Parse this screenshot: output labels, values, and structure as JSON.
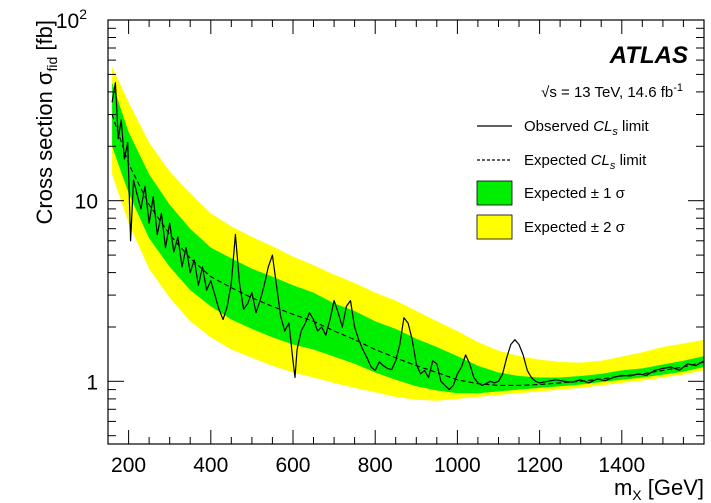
{
  "chart_data": {
    "type": "line",
    "experiment": "ATLAS",
    "energy_label": "√s = 13 TeV, 14.6 fb",
    "energy_label_sup": "-1",
    "xlabel": "m",
    "xlabel_sub": "X",
    "xlabel_unit": " [GeV]",
    "ylabel": "Cross section σ",
    "ylabel_sub": "fid",
    "ylabel_unit": " [fb]",
    "y_scale": "log",
    "xlim": [
      150,
      1600
    ],
    "ylim": [
      0.45,
      100
    ],
    "x_ticks": [
      200,
      400,
      600,
      800,
      1000,
      1200,
      1400
    ],
    "x_tick_labels": [
      "200",
      "400",
      "600",
      "800",
      "1000",
      "1200",
      "1400"
    ],
    "y_tick_labels": [
      {
        "value": 1,
        "label": "1"
      },
      {
        "value": 10,
        "label": "10"
      },
      {
        "value": 100,
        "label": "10",
        "sup": "2"
      }
    ],
    "legend": [
      {
        "key": "observed",
        "label": "Observed ",
        "label_italic": "CL",
        "label_sub": "s",
        "label_tail": " limit",
        "style": "solid-line"
      },
      {
        "key": "expected",
        "label": "Expected ",
        "label_italic": "CL",
        "label_sub": "s",
        "label_tail": " limit",
        "style": "dashed-line"
      },
      {
        "key": "band1",
        "label": "Expected ± 1 σ",
        "style": "fill",
        "color": "#00ee00"
      },
      {
        "key": "band2",
        "label": "Expected ± 2 σ",
        "style": "fill",
        "color": "#ffff00"
      }
    ],
    "legend_position": "top-right",
    "colors": {
      "band1": "#00ee00",
      "band2": "#ffff00",
      "lines": "#000000"
    },
    "series": [
      {
        "key": "expected",
        "x": [
          160,
          200,
          250,
          300,
          350,
          400,
          450,
          500,
          550,
          600,
          650,
          700,
          750,
          800,
          850,
          900,
          950,
          1000,
          1050,
          1100,
          1150,
          1200,
          1250,
          1300,
          1350,
          1400,
          1450,
          1500,
          1550,
          1600
        ],
        "y": [
          30,
          16,
          9.5,
          6.5,
          4.8,
          3.8,
          3.3,
          2.9,
          2.6,
          2.35,
          2.15,
          1.9,
          1.7,
          1.5,
          1.35,
          1.22,
          1.12,
          1.02,
          0.97,
          0.95,
          0.95,
          0.96,
          0.98,
          1.0,
          1.03,
          1.07,
          1.1,
          1.15,
          1.2,
          1.28
        ]
      },
      {
        "key": "band1",
        "x": [
          160,
          200,
          250,
          300,
          350,
          400,
          450,
          500,
          550,
          600,
          650,
          700,
          750,
          800,
          850,
          900,
          950,
          1000,
          1050,
          1100,
          1150,
          1200,
          1250,
          1300,
          1350,
          1400,
          1450,
          1500,
          1550,
          1600
        ],
        "lower": [
          20,
          11,
          6.2,
          4.3,
          3.2,
          2.6,
          2.2,
          1.95,
          1.75,
          1.6,
          1.5,
          1.37,
          1.25,
          1.12,
          1.02,
          0.94,
          0.89,
          0.86,
          0.86,
          0.88,
          0.9,
          0.92,
          0.94,
          0.96,
          0.99,
          1.02,
          1.05,
          1.09,
          1.13,
          1.2
        ],
        "upper": [
          45,
          24,
          14,
          9.5,
          7.0,
          5.5,
          4.8,
          4.2,
          3.8,
          3.4,
          3.1,
          2.7,
          2.45,
          2.15,
          1.95,
          1.72,
          1.55,
          1.38,
          1.22,
          1.12,
          1.07,
          1.05,
          1.05,
          1.07,
          1.1,
          1.15,
          1.18,
          1.24,
          1.3,
          1.38
        ]
      },
      {
        "key": "band2",
        "x": [
          160,
          200,
          250,
          300,
          350,
          400,
          450,
          500,
          550,
          600,
          650,
          700,
          750,
          800,
          850,
          900,
          950,
          1000,
          1050,
          1100,
          1150,
          1200,
          1250,
          1300,
          1350,
          1400,
          1450,
          1500,
          1550,
          1600
        ],
        "lower": [
          14,
          7.5,
          4.2,
          2.9,
          2.15,
          1.75,
          1.5,
          1.35,
          1.22,
          1.12,
          1.05,
          0.98,
          0.92,
          0.87,
          0.82,
          0.79,
          0.78,
          0.8,
          0.82,
          0.84,
          0.86,
          0.88,
          0.9,
          0.92,
          0.95,
          0.98,
          1.01,
          1.05,
          1.09,
          1.15
        ],
        "upper": [
          55,
          35,
          21,
          14.5,
          11,
          8.5,
          7.2,
          6.3,
          5.6,
          4.9,
          4.4,
          3.9,
          3.5,
          3.1,
          2.8,
          2.45,
          2.15,
          1.9,
          1.65,
          1.48,
          1.38,
          1.32,
          1.28,
          1.27,
          1.3,
          1.37,
          1.45,
          1.55,
          1.62,
          1.7
        ]
      },
      {
        "key": "observed",
        "x": [
          160,
          168,
          175,
          182,
          190,
          198,
          205,
          212,
          220,
          230,
          240,
          250,
          260,
          270,
          280,
          290,
          300,
          310,
          320,
          330,
          340,
          350,
          360,
          370,
          380,
          390,
          400,
          410,
          420,
          430,
          440,
          450,
          460,
          470,
          480,
          490,
          500,
          510,
          520,
          530,
          540,
          550,
          560,
          570,
          580,
          590,
          600,
          605,
          610,
          620,
          630,
          640,
          650,
          660,
          670,
          680,
          690,
          700,
          710,
          720,
          730,
          740,
          750,
          760,
          770,
          780,
          790,
          800,
          810,
          820,
          830,
          840,
          850,
          860,
          870,
          880,
          890,
          900,
          910,
          920,
          930,
          940,
          950,
          960,
          970,
          980,
          990,
          1000,
          1010,
          1020,
          1030,
          1040,
          1050,
          1060,
          1070,
          1080,
          1090,
          1100,
          1110,
          1120,
          1130,
          1140,
          1150,
          1160,
          1170,
          1180,
          1190,
          1200,
          1220,
          1240,
          1260,
          1280,
          1300,
          1320,
          1340,
          1360,
          1380,
          1400,
          1420,
          1440,
          1460,
          1480,
          1500,
          1520,
          1540,
          1560,
          1580,
          1600
        ],
        "y": [
          35,
          45,
          22,
          28,
          17,
          21,
          6,
          13,
          11,
          9,
          12,
          7.5,
          10.5,
          6.5,
          8.5,
          5.5,
          7.5,
          5.2,
          6.3,
          4.3,
          5.5,
          4.0,
          4.7,
          3.4,
          4.3,
          3.2,
          3.6,
          3.0,
          2.5,
          2.2,
          2.6,
          3.5,
          6.5,
          3.5,
          2.5,
          2.7,
          3.1,
          2.4,
          2.8,
          3.4,
          4.3,
          5.0,
          3.4,
          2.3,
          1.9,
          2.1,
          1.3,
          1.05,
          1.5,
          1.9,
          2.1,
          2.4,
          2.2,
          1.9,
          2.0,
          1.8,
          2.2,
          2.8,
          2.4,
          2.0,
          2.6,
          2.8,
          2.0,
          1.7,
          1.5,
          1.35,
          1.2,
          1.15,
          1.28,
          1.22,
          1.18,
          1.16,
          1.3,
          1.6,
          2.25,
          2.1,
          1.7,
          1.25,
          1.1,
          1.15,
          1.05,
          1.3,
          1.25,
          1.0,
          0.95,
          0.9,
          0.95,
          1.1,
          1.2,
          1.4,
          1.25,
          1.05,
          0.98,
          0.95,
          0.97,
          1.0,
          0.98,
          1.0,
          1.1,
          1.35,
          1.6,
          1.7,
          1.6,
          1.4,
          1.15,
          1.05,
          1.0,
          0.98,
          1.0,
          1.02,
          1.0,
          0.99,
          1.02,
          0.98,
          1.03,
          1.01,
          1.05,
          1.08,
          1.07,
          1.1,
          1.08,
          1.15,
          1.18,
          1.2,
          1.15,
          1.25,
          1.22,
          1.3
        ]
      }
    ]
  }
}
